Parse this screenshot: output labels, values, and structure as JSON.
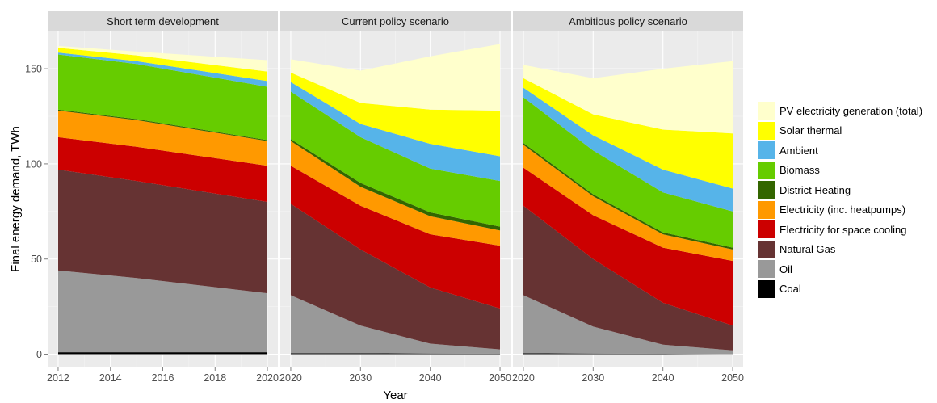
{
  "chart_data": {
    "type": "area",
    "stacked": true,
    "ylabel": "Final energy demand, TWh",
    "xlabel": "Year",
    "ylim": [
      -7,
      170
    ],
    "y_ticks": [
      0,
      50,
      100,
      150
    ],
    "grid": true,
    "legend_position": "right",
    "series_order_bottom_to_top": [
      "Coal",
      "Oil",
      "Natural Gas",
      "Electricity for space cooling",
      "Electricity (inc. heatpumps)",
      "District Heating",
      "Biomass",
      "Ambient",
      "Solar thermal",
      "PV electricity generation (total)"
    ],
    "legend": [
      {
        "name": "PV electricity generation (total)",
        "color": "#ffffcc"
      },
      {
        "name": "Solar thermal",
        "color": "#ffff00"
      },
      {
        "name": "Ambient",
        "color": "#56b4e9"
      },
      {
        "name": "Biomass",
        "color": "#66cc00"
      },
      {
        "name": "District Heating",
        "color": "#336600"
      },
      {
        "name": "Electricity (inc. heatpumps)",
        "color": "#ff9900"
      },
      {
        "name": "Electricity for space cooling",
        "color": "#cc0000"
      },
      {
        "name": "Natural Gas",
        "color": "#663333"
      },
      {
        "name": "Oil",
        "color": "#999999"
      },
      {
        "name": "Coal",
        "color": "#000000"
      }
    ],
    "panels": [
      {
        "title": "Short term development",
        "x": [
          2012,
          2015,
          2020
        ],
        "x_ticks": [
          "2012",
          "2014",
          "2016",
          "2018",
          "2020"
        ],
        "x_tick_values": [
          2012,
          2014,
          2016,
          2018,
          2020
        ],
        "xlim": [
          2011.6,
          2020.4
        ],
        "series": {
          "Coal": [
            1,
            1,
            1
          ],
          "Oil": [
            43,
            39,
            31
          ],
          "Natural Gas": [
            53,
            51,
            48
          ],
          "Electricity for space cooling": [
            17,
            18,
            19
          ],
          "Electricity (inc. heatpumps)": [
            14,
            14,
            13
          ],
          "District Heating": [
            0.5,
            0.5,
            0.5
          ],
          "Biomass": [
            29,
            29,
            28
          ],
          "Ambient": [
            1,
            1.5,
            3
          ],
          "Solar thermal": [
            2.5,
            3,
            5
          ],
          "PV electricity generation (total)": [
            1,
            2,
            6
          ]
        }
      },
      {
        "title": "Current policy scenario",
        "x": [
          2020,
          2030,
          2040,
          2050
        ],
        "x_ticks": [
          "2020",
          "2030",
          "2040",
          "2050"
        ],
        "x_tick_values": [
          2020,
          2030,
          2040,
          2050
        ],
        "xlim": [
          2018.5,
          2051.5
        ],
        "series": {
          "Coal": [
            0.5,
            0.5,
            0.3,
            0.2
          ],
          "Oil": [
            30.5,
            14.5,
            5.2,
            2.3
          ],
          "Natural Gas": [
            48,
            40,
            29.5,
            21.5
          ],
          "Electricity for space cooling": [
            20,
            23,
            28,
            33
          ],
          "Electricity (inc. heatpumps)": [
            13,
            10,
            9.5,
            8
          ],
          "District Heating": [
            1,
            2,
            2,
            2
          ],
          "Biomass": [
            25,
            24,
            23,
            24
          ],
          "Ambient": [
            5,
            7,
            13,
            13
          ],
          "Solar thermal": [
            5,
            11,
            18,
            24
          ],
          "PV electricity generation (total)": [
            7,
            17,
            28,
            35
          ]
        }
      },
      {
        "title": "Ambitious policy scenario",
        "x": [
          2020,
          2030,
          2040,
          2050
        ],
        "x_ticks": [
          "2020",
          "2030",
          "2040",
          "2050"
        ],
        "x_tick_values": [
          2020,
          2030,
          2040,
          2050
        ],
        "xlim": [
          2018.5,
          2051.5
        ],
        "series": {
          "Coal": [
            0.5,
            0.3,
            0.2,
            0.1
          ],
          "Oil": [
            30.5,
            14.2,
            4.8,
            1.9
          ],
          "Natural Gas": [
            47,
            35.5,
            22,
            13
          ],
          "Electricity for space cooling": [
            20,
            23,
            29,
            34
          ],
          "Electricity (inc. heatpumps)": [
            12,
            10,
            7,
            6
          ],
          "District Heating": [
            1,
            1,
            1,
            1
          ],
          "Biomass": [
            24,
            23,
            21,
            19
          ],
          "Ambient": [
            5,
            8,
            12,
            12
          ],
          "Solar thermal": [
            5,
            11,
            21,
            29
          ],
          "PV electricity generation (total)": [
            7,
            19,
            32,
            38
          ]
        }
      }
    ]
  }
}
